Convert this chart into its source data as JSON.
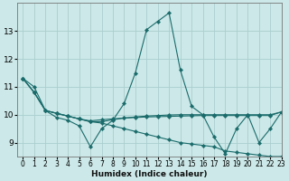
{
  "xlabel": "Humidex (Indice chaleur)",
  "xlim": [
    -0.5,
    23
  ],
  "ylim": [
    8.5,
    14.0
  ],
  "yticks": [
    9,
    10,
    11,
    12,
    13
  ],
  "xticks": [
    0,
    1,
    2,
    3,
    4,
    5,
    6,
    7,
    8,
    9,
    10,
    11,
    12,
    13,
    14,
    15,
    16,
    17,
    18,
    19,
    20,
    21,
    22,
    23
  ],
  "background_color": "#cce8e8",
  "grid_color": "#aacece",
  "line_color": "#1a6b6b",
  "series": [
    [
      11.3,
      10.8,
      10.15,
      9.9,
      9.8,
      9.6,
      8.85,
      9.5,
      9.8,
      10.4,
      11.5,
      13.05,
      13.35,
      13.65,
      11.6,
      10.3,
      10.0,
      9.2,
      8.6,
      9.5,
      10.0,
      9.0,
      9.5,
      10.1
    ],
    [
      11.3,
      10.8,
      10.15,
      10.05,
      9.95,
      9.85,
      9.75,
      9.75,
      9.82,
      9.88,
      9.92,
      9.95,
      9.97,
      9.99,
      10.0,
      10.0,
      10.0,
      10.0,
      10.0,
      10.0,
      10.0,
      10.0,
      10.0,
      10.1
    ],
    [
      11.3,
      10.8,
      10.15,
      10.05,
      9.95,
      9.85,
      9.75,
      9.7,
      9.6,
      9.5,
      9.4,
      9.3,
      9.2,
      9.1,
      9.0,
      8.95,
      8.9,
      8.85,
      8.7,
      8.65,
      8.6,
      8.55,
      8.5,
      8.5
    ],
    [
      11.3,
      11.0,
      10.15,
      10.05,
      9.95,
      9.85,
      9.78,
      9.82,
      9.85,
      9.88,
      9.9,
      9.92,
      9.93,
      9.94,
      9.95,
      9.96,
      9.97,
      9.97,
      9.97,
      9.97,
      9.97,
      9.97,
      9.97,
      10.1
    ]
  ]
}
